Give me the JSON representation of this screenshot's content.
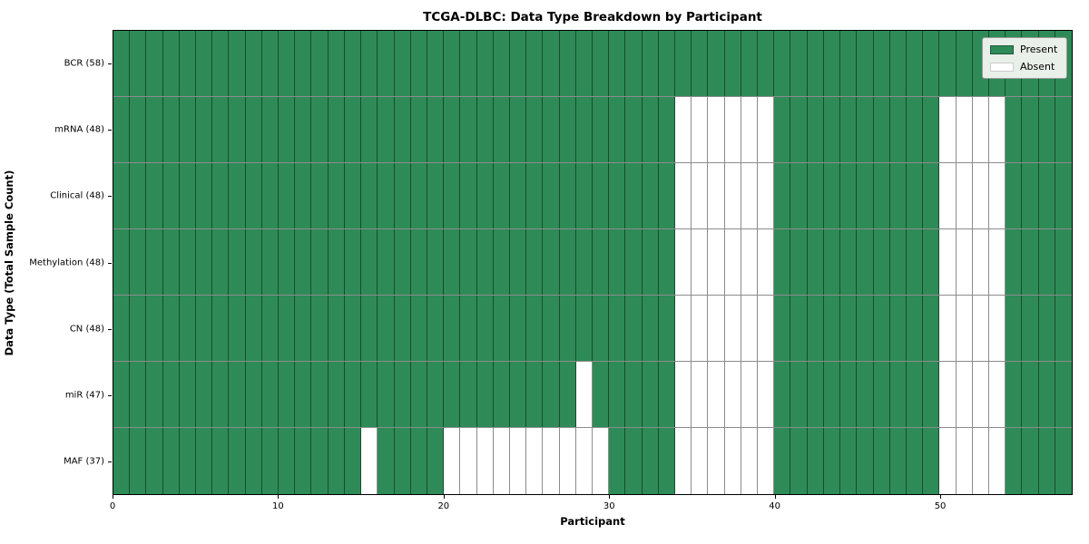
{
  "chart_data": {
    "type": "heatmap",
    "title": "TCGA-DLBC: Data Type Breakdown by Participant",
    "xlabel": "Participant",
    "ylabel": "Data Type (Total Sample Count)",
    "n_participants": 58,
    "x_ticks": [
      0,
      10,
      20,
      30,
      40,
      50
    ],
    "legend": {
      "present_label": "Present",
      "absent_label": "Absent",
      "position": "upper right"
    },
    "colors": {
      "present": "#2E8B57",
      "absent": "#FFFFFF"
    },
    "rows": [
      {
        "label": "BCR (58)",
        "data_type": "BCR",
        "present_count": 58,
        "absent_participants": []
      },
      {
        "label": "mRNA (48)",
        "data_type": "mRNA",
        "present_count": 48,
        "absent_participants": [
          34,
          35,
          36,
          37,
          38,
          39,
          50,
          51,
          52,
          53
        ]
      },
      {
        "label": "Clinical (48)",
        "data_type": "Clinical",
        "present_count": 48,
        "absent_participants": [
          34,
          35,
          36,
          37,
          38,
          39,
          50,
          51,
          52,
          53
        ]
      },
      {
        "label": "Methylation (48)",
        "data_type": "Methylation",
        "present_count": 48,
        "absent_participants": [
          34,
          35,
          36,
          37,
          38,
          39,
          50,
          51,
          52,
          53
        ]
      },
      {
        "label": "CN (48)",
        "data_type": "CN",
        "present_count": 48,
        "absent_participants": [
          34,
          35,
          36,
          37,
          38,
          39,
          50,
          51,
          52,
          53
        ]
      },
      {
        "label": "miR (47)",
        "data_type": "miR",
        "present_count": 47,
        "absent_participants": [
          28,
          34,
          35,
          36,
          37,
          38,
          39,
          50,
          51,
          52,
          53
        ]
      },
      {
        "label": "MAF (37)",
        "data_type": "MAF",
        "present_count": 37,
        "absent_participants": [
          15,
          20,
          21,
          22,
          23,
          24,
          25,
          26,
          27,
          28,
          29,
          34,
          35,
          36,
          37,
          38,
          39,
          50,
          51,
          52,
          53
        ]
      }
    ]
  }
}
